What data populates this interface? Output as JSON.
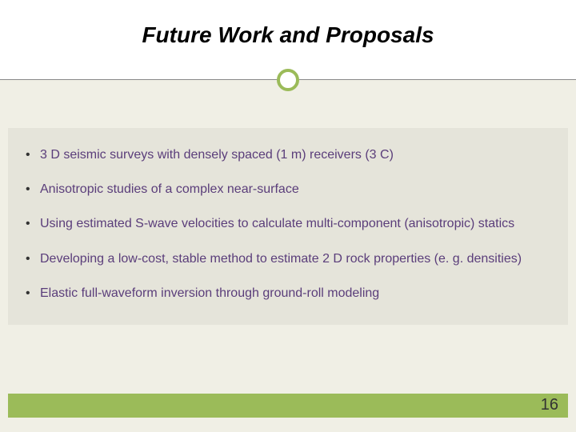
{
  "slide": {
    "title": "Future Work and Proposals",
    "page_number": "16",
    "accent_color": "#9bbb59",
    "background_color": "#f0efe5",
    "content_bg": "#e5e4da",
    "bullet_text_color": "#5a3d7a",
    "bullets": [
      "3 D seismic surveys with densely spaced (1 m) receivers (3 C)",
      "Anisotropic studies of a complex near-surface",
      "Using estimated S-wave velocities to calculate multi-component (anisotropic) statics",
      "Developing a low-cost, stable method to estimate 2 D rock properties (e. g. densities)",
      "Elastic full-waveform inversion through ground-roll modeling"
    ]
  }
}
